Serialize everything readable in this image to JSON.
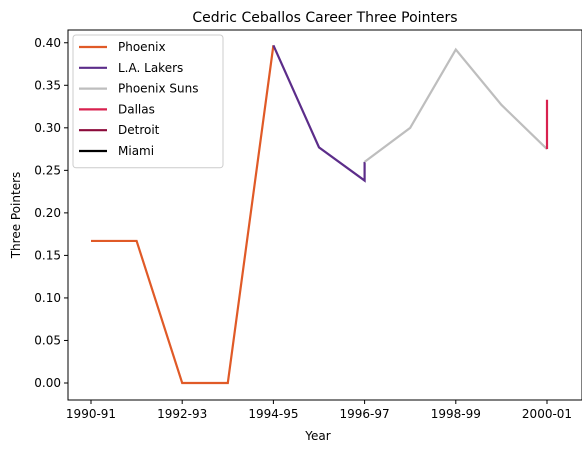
{
  "chart_data": {
    "type": "line",
    "title": "Cedric Ceballos Career Three Pointers",
    "xlabel": "Year",
    "ylabel": "Three Pointers",
    "x_ticks": [
      "1990-91",
      "1992-93",
      "1994-95",
      "1996-97",
      "1998-99",
      "2000-01"
    ],
    "y_ticks": [
      "0.00",
      "0.05",
      "0.10",
      "0.15",
      "0.20",
      "0.25",
      "0.30",
      "0.35",
      "0.40"
    ],
    "ylim": [
      -0.02,
      0.415
    ],
    "legend_position": "top-left",
    "grid": false,
    "series": [
      {
        "name": "Phoenix",
        "color": "#e05a27",
        "points": [
          {
            "x": "1990-91",
            "y": 0.167
          },
          {
            "x": "1991-92",
            "y": 0.167
          },
          {
            "x": "1992-93",
            "y": 0.0
          },
          {
            "x": "1993-94",
            "y": 0.0
          },
          {
            "x": "1994-95",
            "y": 0.397
          }
        ]
      },
      {
        "name": "L.A. Lakers",
        "color": "#5c2d8a",
        "points": [
          {
            "x": "1994-95",
            "y": 0.397
          },
          {
            "x": "1995-96",
            "y": 0.277
          },
          {
            "x": "1996-97",
            "y": 0.238
          },
          {
            "x": "1996-97",
            "y": 0.26
          }
        ]
      },
      {
        "name": "Phoenix Suns",
        "color": "#bebebe",
        "points": [
          {
            "x": "1996-97",
            "y": 0.26
          },
          {
            "x": "1997-98",
            "y": 0.3
          },
          {
            "x": "1998-99",
            "y": 0.392
          },
          {
            "x": "1999-00",
            "y": 0.327
          },
          {
            "x": "2000-01",
            "y": 0.275
          }
        ]
      },
      {
        "name": "Dallas",
        "color": "#d8214f",
        "points": [
          {
            "x": "2000-01",
            "y": 0.275
          },
          {
            "x": "2000-01",
            "y": 0.333
          }
        ]
      },
      {
        "name": "Detroit",
        "color": "#8b0a3a",
        "points": []
      },
      {
        "name": "Miami",
        "color": "#000000",
        "points": []
      }
    ]
  }
}
